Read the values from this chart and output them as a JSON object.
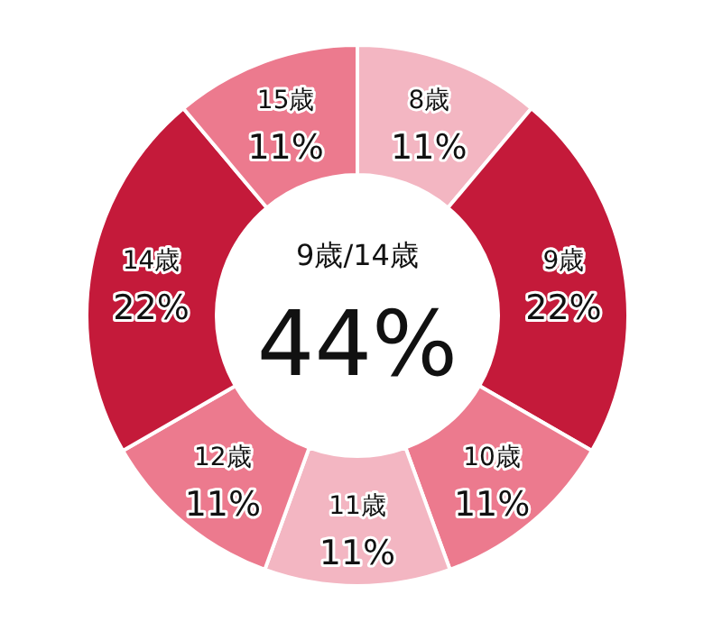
{
  "chart_data": {
    "type": "donut",
    "categories": [
      "8歳",
      "9歳",
      "10歳",
      "11歳",
      "12歳",
      "14歳",
      "15歳"
    ],
    "values": [
      11,
      22,
      11,
      11,
      11,
      22,
      11
    ],
    "value_labels": [
      "11%",
      "22%",
      "11%",
      "11%",
      "11%",
      "22%",
      "11%"
    ],
    "colors": [
      "#f3b6c2",
      "#c41a3a",
      "#ec7a8e",
      "#f3b6c2",
      "#ec7a8e",
      "#c41a3a",
      "#ec7a8e"
    ],
    "annotations": [
      "9歳/14歳",
      "44%"
    ]
  }
}
